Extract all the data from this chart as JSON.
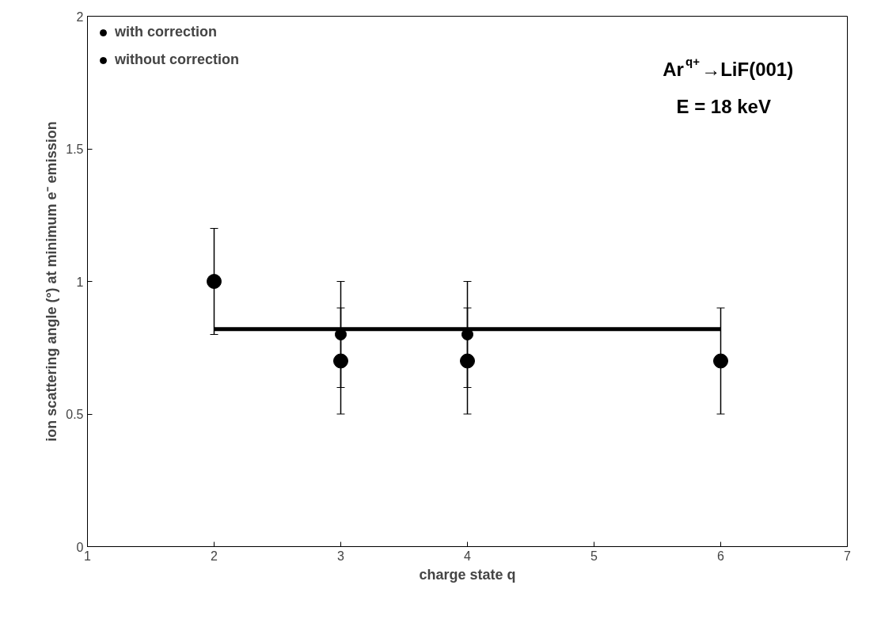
{
  "chart_data": {
    "type": "scatter",
    "xlabel": "charge state q",
    "ylabel": "ion scattering angle (°) at minimum e⁻ emission",
    "xlim": [
      1,
      7
    ],
    "xticks": [
      1,
      2,
      3,
      4,
      5,
      6,
      7
    ],
    "ylim": [
      0,
      2
    ],
    "yticks": [
      0,
      0.5,
      1,
      1.5,
      2
    ],
    "grid": false,
    "legend": "top left",
    "marker": "circle",
    "series": [
      {
        "name": "with correction",
        "color": "#000000",
        "x": [
          2,
          3,
          4,
          6
        ],
        "values": [
          1.0,
          0.7,
          0.7,
          0.7
        ],
        "errors": [
          0.2,
          0.2,
          0.2,
          0.2
        ]
      },
      {
        "name": "without correction",
        "color": "#000000",
        "x": [
          3,
          4
        ],
        "values": [
          0.8,
          0.8
        ],
        "errors": [
          0.2,
          0.2
        ]
      },
      {
        "type": "line",
        "color": "#000000",
        "marker": "none",
        "x": [
          2,
          6
        ],
        "values": [
          0.82,
          0.82
        ]
      }
    ],
    "annotations": [
      "Ar$^{q+}$→LiF(001)",
      "E = 18 keV"
    ]
  }
}
